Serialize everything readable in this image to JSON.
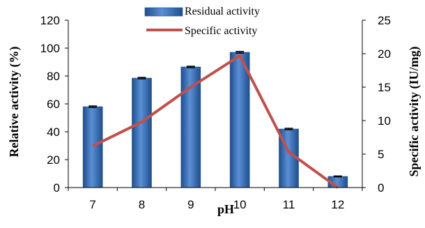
{
  "chart_data": {
    "type": "bar",
    "x_label": "pH",
    "y_left_label": "Relative  activity (%)",
    "y_right_label": "Specific activity (IU/mg)",
    "categories": [
      "7",
      "8",
      "9",
      "10",
      "11",
      "12"
    ],
    "series": [
      {
        "name": "Residual activity",
        "type": "bar",
        "axis": "left",
        "values": [
          58,
          78.5,
          86.5,
          97,
          42,
          8
        ],
        "error": [
          0.5,
          0.5,
          0.5,
          0.6,
          0.5,
          0.3
        ],
        "color": "#4f81bd"
      },
      {
        "name": "Specific activity",
        "type": "line",
        "axis": "right",
        "values": [
          6.2,
          9.8,
          15,
          19.7,
          5.3,
          0
        ],
        "color": "#c0504d"
      }
    ],
    "y_left_range": [
      0,
      120
    ],
    "y_left_ticks": [
      0,
      20,
      40,
      60,
      80,
      100,
      120
    ],
    "y_right_range": [
      0,
      25
    ],
    "y_right_ticks": [
      0,
      5,
      10,
      15,
      20,
      25
    ],
    "grid": false,
    "legend_position": "top-center"
  }
}
